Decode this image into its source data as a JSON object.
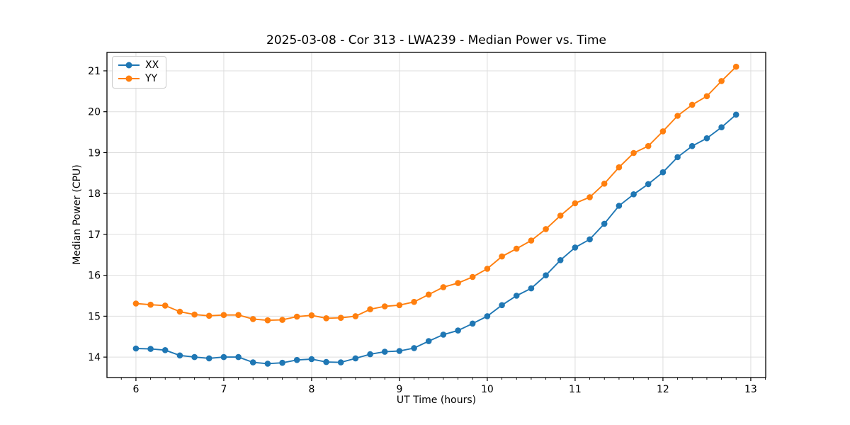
{
  "chart_data": {
    "type": "line",
    "title": "2025-03-08 - Cor 313 - LWA239 - Median Power vs. Time",
    "xlabel": "UT Time (hours)",
    "ylabel": "Median Power (CPU)",
    "xlim": [
      5.67,
      13.17
    ],
    "ylim": [
      13.5,
      21.45
    ],
    "x_ticks": [
      6,
      7,
      8,
      9,
      10,
      11,
      12,
      13
    ],
    "y_ticks": [
      14,
      15,
      16,
      17,
      18,
      19,
      20,
      21
    ],
    "x_minor_tick_step": 0.166667,
    "grid": "major-only",
    "legend_position": "upper-left",
    "x": [
      6.0,
      6.167,
      6.333,
      6.5,
      6.667,
      6.833,
      7.0,
      7.167,
      7.333,
      7.5,
      7.667,
      7.833,
      8.0,
      8.167,
      8.333,
      8.5,
      8.667,
      8.833,
      9.0,
      9.167,
      9.333,
      9.5,
      9.667,
      9.833,
      10.0,
      10.167,
      10.333,
      10.5,
      10.667,
      10.833,
      11.0,
      11.167,
      11.333,
      11.5,
      11.667,
      11.833,
      12.0,
      12.167,
      12.333,
      12.5,
      12.667,
      12.833
    ],
    "series": [
      {
        "name": "XX",
        "color": "#1f77b4",
        "marker": "circle",
        "values": [
          14.21,
          14.2,
          14.17,
          14.04,
          14.0,
          13.97,
          14.0,
          14.0,
          13.87,
          13.84,
          13.86,
          13.93,
          13.95,
          13.88,
          13.87,
          13.97,
          14.07,
          14.13,
          14.15,
          14.22,
          14.39,
          14.55,
          14.65,
          14.82,
          15.0,
          15.27,
          15.5,
          15.68,
          16.0,
          16.37,
          16.68,
          16.88,
          17.26,
          17.7,
          17.98,
          18.23,
          18.52,
          18.89,
          19.16,
          19.35,
          19.62,
          19.93
        ]
      },
      {
        "name": "YY",
        "color": "#ff7f0e",
        "marker": "circle",
        "values": [
          15.31,
          15.28,
          15.26,
          15.11,
          15.04,
          15.01,
          15.03,
          15.03,
          14.93,
          14.9,
          14.91,
          14.99,
          15.02,
          14.95,
          14.96,
          15.0,
          15.17,
          15.24,
          15.27,
          15.35,
          15.53,
          15.71,
          15.81,
          15.96,
          16.16,
          16.46,
          16.65,
          16.85,
          17.13,
          17.46,
          17.76,
          17.91,
          18.24,
          18.64,
          18.99,
          19.16,
          19.52,
          19.9,
          20.17,
          20.38,
          20.75,
          21.1
        ]
      }
    ]
  },
  "colors": {
    "background": "#ffffff",
    "spine": "#000000",
    "grid": "#dddddd",
    "tick": "#000000",
    "text": "#000000",
    "series_xx": "#1f77b4",
    "series_yy": "#ff7f0e"
  }
}
